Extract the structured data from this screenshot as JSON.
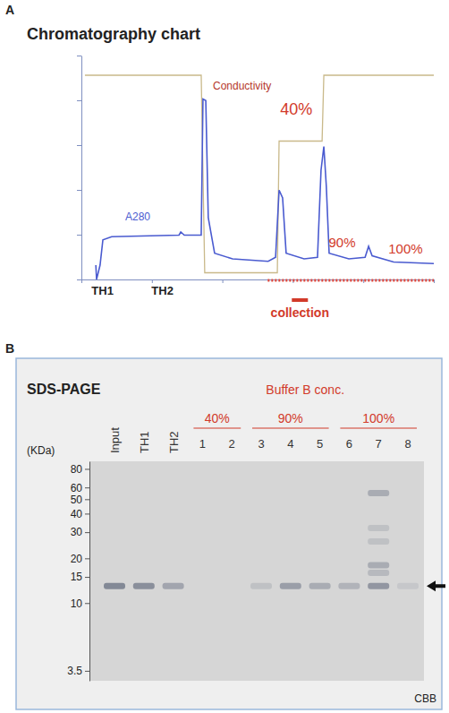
{
  "panel_labels": [
    "A",
    "B"
  ],
  "chart_data": [
    {
      "type": "line",
      "title": "Chromatography chart",
      "xlim": [
        0,
        100
      ],
      "ylim": [
        0,
        100
      ],
      "xticks": [
        0,
        20,
        40,
        60,
        80,
        100
      ],
      "yticks": [
        0,
        20,
        40,
        60,
        80,
        100
      ],
      "tick_labels": false,
      "series": [
        {
          "name": "A280",
          "color": "#4a5bd0",
          "x": [
            4.1,
            4.3,
            5.3,
            6.1,
            8.6,
            27.7,
            28.2,
            29.2,
            34.0,
            34.5,
            35.3,
            36.0,
            37.8,
            42.9,
            53.0,
            55.1,
            56.1,
            57.1,
            58.1,
            63.2,
            67.0,
            68.0,
            68.8,
            69.5,
            70.3,
            75.9,
            80.5,
            81.5,
            82.5,
            88.6,
            100
          ],
          "values": [
            6.4,
            0,
            6.4,
            17.7,
            19.1,
            19.8,
            21.2,
            19.8,
            19.8,
            80.6,
            79.9,
            27.6,
            11.7,
            9.2,
            8.1,
            9.9,
            39.9,
            36.4,
            11.7,
            9.2,
            9.9,
            48.8,
            59.4,
            41.7,
            11.7,
            9.2,
            9.9,
            14.8,
            10.6,
            7.8,
            7.1
          ]
        },
        {
          "name": "Conductivity",
          "color": "#c9b98a",
          "x": [
            1.0,
            34.0,
            35.0,
            55.6,
            56.1,
            68.3,
            68.8,
            100
          ],
          "values": [
            91.2,
            91.2,
            3.0,
            3.0,
            61.8,
            61.8,
            91.2,
            91.2
          ]
        }
      ],
      "annotations": [
        {
          "text": "TH1",
          "x": 6
        },
        {
          "text": "TH2",
          "x": 23
        },
        {
          "text": "40%",
          "x": 61
        },
        {
          "text": "90%",
          "x": 74
        },
        {
          "text": "100%",
          "x": 92
        },
        {
          "text": "collection",
          "x": 62
        }
      ]
    },
    {
      "type": "gel",
      "title": "SDS-PAGE",
      "subtitle": "Buffer B conc.",
      "ylabel": "(KDa)",
      "log": "y",
      "ylim": [
        90,
        3
      ],
      "yticks": [
        80,
        60,
        50,
        40,
        30,
        20,
        15,
        10,
        3.5
      ],
      "categories": [
        "Input",
        "TH1",
        "TH2",
        "1",
        "2",
        "3",
        "4",
        "5",
        "6",
        "7",
        "8"
      ],
      "groups": [
        {
          "label": "40%",
          "lanes": [
            "1",
            "2"
          ]
        },
        {
          "label": "90%",
          "lanes": [
            "3",
            "4",
            "5"
          ]
        },
        {
          "label": "100%",
          "lanes": [
            "6",
            "7",
            "8"
          ]
        }
      ],
      "bands": [
        {
          "lane": "Input",
          "kda": 13,
          "intensity": 0.55
        },
        {
          "lane": "TH1",
          "kda": 13,
          "intensity": 0.5
        },
        {
          "lane": "TH2",
          "kda": 13,
          "intensity": 0.35
        },
        {
          "lane": "3",
          "kda": 13,
          "intensity": 0.15
        },
        {
          "lane": "4",
          "kda": 13,
          "intensity": 0.4
        },
        {
          "lane": "5",
          "kda": 13,
          "intensity": 0.3
        },
        {
          "lane": "6",
          "kda": 13,
          "intensity": 0.25
        },
        {
          "lane": "7",
          "kda": 13,
          "intensity": 0.45
        },
        {
          "lane": "7",
          "kda": 55,
          "intensity": 0.3
        },
        {
          "lane": "7",
          "kda": 32,
          "intensity": 0.15
        },
        {
          "lane": "7",
          "kda": 26,
          "intensity": 0.15
        },
        {
          "lane": "7",
          "kda": 18,
          "intensity": 0.3
        },
        {
          "lane": "7",
          "kda": 16,
          "intensity": 0.2
        },
        {
          "lane": "8",
          "kda": 13,
          "intensity": 0.1
        }
      ],
      "annotations": [
        "CBB"
      ]
    }
  ]
}
